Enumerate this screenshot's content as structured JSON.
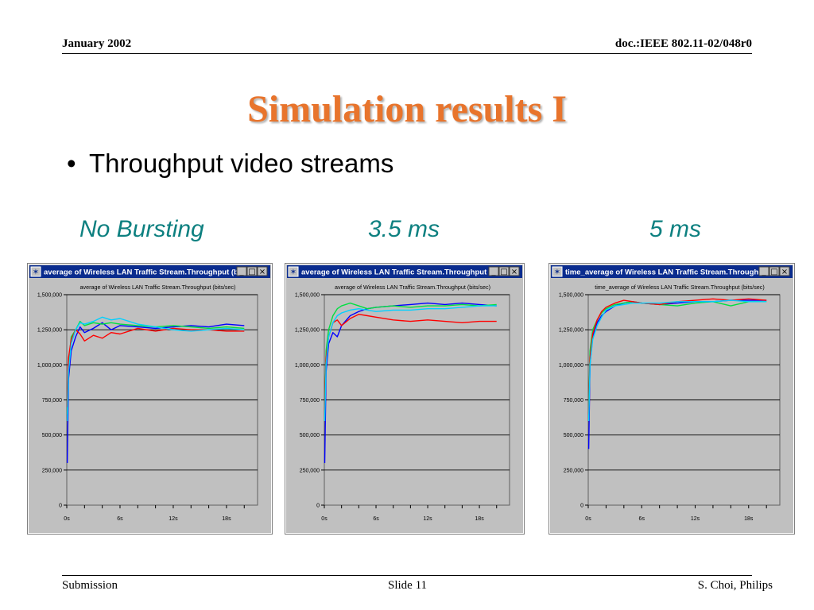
{
  "header": {
    "date": "January 2002",
    "doc_id": "doc.:IEEE 802.11-02/048r0"
  },
  "slide": {
    "title": "Simulation results I",
    "bullet": "Throughput video streams",
    "captions": [
      "No Bursting",
      "3.5 ms",
      "5 ms"
    ]
  },
  "footer": {
    "left": "Submission",
    "center": "Slide 11",
    "right": "S. Choi, Philips"
  },
  "colors": {
    "title": "#e8742c",
    "caption": "#0d8080",
    "window_title_bar": "#0a2c8e",
    "plot_background": "#c0c0c0",
    "series": [
      "#0000ff",
      "#00e040",
      "#ff0000",
      "#00d0ff"
    ]
  },
  "chart_data": [
    {
      "type": "line",
      "window_title": "average of Wireless LAN Traffic Stream.Throughput (bits/s...",
      "title": "average of Wireless LAN Traffic Stream.Throughput (bits/sec)",
      "xlim": [
        0,
        21.5
      ],
      "ylim": [
        0,
        1500000
      ],
      "xticks": [
        0,
        6,
        12,
        18
      ],
      "xtick_labels": [
        "0s",
        "6s",
        "12s",
        "18s"
      ],
      "yticks": [
        0,
        250000,
        500000,
        750000,
        1000000,
        1250000,
        1500000
      ],
      "ytick_labels": [
        "0",
        "250,000",
        "500,000",
        "750,000",
        "1,000,000",
        "1,250,000",
        "1,500,000"
      ],
      "grid": true,
      "series": [
        {
          "color": "blue",
          "x": [
            0.05,
            0.2,
            0.5,
            1,
            1.5,
            2,
            3,
            4,
            5,
            6,
            8,
            10,
            12,
            14,
            16,
            18,
            20
          ],
          "y": [
            300000,
            900000,
            1100000,
            1200000,
            1270000,
            1230000,
            1260000,
            1300000,
            1250000,
            1280000,
            1270000,
            1260000,
            1270000,
            1280000,
            1270000,
            1290000,
            1280000
          ]
        },
        {
          "color": "green",
          "x": [
            0.05,
            0.2,
            0.5,
            1,
            1.5,
            2,
            3,
            4,
            5,
            6,
            8,
            10,
            12,
            14,
            16,
            18,
            20
          ],
          "y": [
            650000,
            1000000,
            1200000,
            1250000,
            1310000,
            1280000,
            1300000,
            1290000,
            1300000,
            1290000,
            1280000,
            1270000,
            1280000,
            1270000,
            1260000,
            1270000,
            1260000
          ]
        },
        {
          "color": "red",
          "x": [
            0.05,
            0.2,
            0.5,
            1,
            1.5,
            2,
            3,
            4,
            5,
            6,
            8,
            10,
            12,
            14,
            16,
            18,
            20
          ],
          "y": [
            700000,
            1050000,
            1180000,
            1250000,
            1220000,
            1170000,
            1210000,
            1190000,
            1230000,
            1220000,
            1260000,
            1240000,
            1260000,
            1250000,
            1250000,
            1240000,
            1240000
          ]
        },
        {
          "color": "cyan",
          "x": [
            0.05,
            0.2,
            0.5,
            1,
            1.5,
            2,
            3,
            4,
            5,
            6,
            8,
            10,
            12,
            14,
            16,
            18,
            20
          ],
          "y": [
            600000,
            950000,
            1150000,
            1250000,
            1300000,
            1290000,
            1310000,
            1340000,
            1320000,
            1330000,
            1290000,
            1270000,
            1250000,
            1240000,
            1250000,
            1260000,
            1250000
          ]
        }
      ]
    },
    {
      "type": "line",
      "window_title": "average of Wireless LAN Traffic Stream.Throughput (bits/s...",
      "title": "average of Wireless LAN Traffic Stream.Throughput (bits/sec)",
      "xlim": [
        0,
        21.5
      ],
      "ylim": [
        0,
        1500000
      ],
      "xticks": [
        0,
        6,
        12,
        18
      ],
      "xtick_labels": [
        "0s",
        "6s",
        "12s",
        "18s"
      ],
      "yticks": [
        0,
        250000,
        500000,
        750000,
        1000000,
        1250000,
        1500000
      ],
      "ytick_labels": [
        "0",
        "250,000",
        "500,000",
        "750,000",
        "1,000,000",
        "1,250,000",
        "1,500,000"
      ],
      "grid": true,
      "series": [
        {
          "color": "blue",
          "x": [
            0.05,
            0.2,
            0.5,
            1,
            1.5,
            2,
            3,
            4,
            5,
            6,
            8,
            10,
            12,
            14,
            16,
            18,
            20
          ],
          "y": [
            300000,
            950000,
            1150000,
            1230000,
            1200000,
            1280000,
            1350000,
            1380000,
            1400000,
            1410000,
            1420000,
            1430000,
            1440000,
            1430000,
            1440000,
            1430000,
            1420000
          ]
        },
        {
          "color": "green",
          "x": [
            0.05,
            0.2,
            0.5,
            1,
            1.5,
            2,
            3,
            4,
            5,
            6,
            8,
            10,
            12,
            14,
            16,
            18,
            20
          ],
          "y": [
            700000,
            1100000,
            1250000,
            1350000,
            1400000,
            1420000,
            1440000,
            1420000,
            1400000,
            1410000,
            1420000,
            1410000,
            1420000,
            1420000,
            1430000,
            1420000,
            1430000
          ]
        },
        {
          "color": "red",
          "x": [
            0.05,
            0.2,
            0.5,
            1,
            1.5,
            2,
            3,
            4,
            5,
            6,
            8,
            10,
            12,
            14,
            16,
            18,
            20
          ],
          "y": [
            680000,
            1050000,
            1200000,
            1300000,
            1320000,
            1280000,
            1330000,
            1360000,
            1350000,
            1340000,
            1320000,
            1310000,
            1320000,
            1310000,
            1300000,
            1310000,
            1310000
          ]
        },
        {
          "color": "cyan",
          "x": [
            0.05,
            0.2,
            0.5,
            1,
            1.5,
            2,
            3,
            4,
            5,
            6,
            8,
            10,
            12,
            14,
            16,
            18,
            20
          ],
          "y": [
            600000,
            1000000,
            1200000,
            1300000,
            1350000,
            1370000,
            1390000,
            1400000,
            1390000,
            1380000,
            1390000,
            1390000,
            1400000,
            1400000,
            1410000,
            1420000,
            1420000
          ]
        }
      ]
    },
    {
      "type": "line",
      "window_title": "time_average of Wireless LAN Traffic Stream.Throughput (...",
      "title": "time_average of Wireless LAN Traffic Stream.Throughput (bits/sec)",
      "xlim": [
        0,
        21.5
      ],
      "ylim": [
        0,
        1500000
      ],
      "xticks": [
        0,
        6,
        12,
        18
      ],
      "xtick_labels": [
        "0s",
        "6s",
        "12s",
        "18s"
      ],
      "yticks": [
        0,
        250000,
        500000,
        750000,
        1000000,
        1250000,
        1500000
      ],
      "ytick_labels": [
        "0",
        "250,000",
        "500,000",
        "750,000",
        "1,000,000",
        "1,250,000",
        "1,500,000"
      ],
      "grid": true,
      "series": [
        {
          "color": "blue",
          "x": [
            0.05,
            0.2,
            0.5,
            1,
            1.5,
            2,
            3,
            4,
            5,
            6,
            8,
            10,
            12,
            14,
            16,
            18,
            20
          ],
          "y": [
            400000,
            1000000,
            1200000,
            1300000,
            1350000,
            1380000,
            1420000,
            1440000,
            1450000,
            1440000,
            1430000,
            1440000,
            1450000,
            1450000,
            1460000,
            1460000,
            1460000
          ]
        },
        {
          "color": "green",
          "x": [
            0.05,
            0.2,
            0.5,
            1,
            1.5,
            2,
            3,
            4,
            5,
            6,
            8,
            10,
            12,
            14,
            16,
            18,
            20
          ],
          "y": [
            700000,
            1100000,
            1250000,
            1320000,
            1370000,
            1400000,
            1430000,
            1440000,
            1450000,
            1440000,
            1430000,
            1420000,
            1440000,
            1450000,
            1420000,
            1450000,
            1450000
          ]
        },
        {
          "color": "red",
          "x": [
            0.05,
            0.2,
            0.5,
            1,
            1.5,
            2,
            3,
            4,
            5,
            6,
            8,
            10,
            12,
            14,
            16,
            18,
            20
          ],
          "y": [
            650000,
            1050000,
            1220000,
            1320000,
            1380000,
            1410000,
            1440000,
            1460000,
            1450000,
            1440000,
            1430000,
            1450000,
            1460000,
            1470000,
            1460000,
            1470000,
            1460000
          ]
        },
        {
          "color": "cyan",
          "x": [
            0.05,
            0.2,
            0.5,
            1,
            1.5,
            2,
            3,
            4,
            5,
            6,
            8,
            10,
            12,
            14,
            16,
            18,
            20
          ],
          "y": [
            600000,
            1000000,
            1180000,
            1280000,
            1340000,
            1390000,
            1420000,
            1430000,
            1440000,
            1440000,
            1440000,
            1450000,
            1450000,
            1450000,
            1460000,
            1450000,
            1450000
          ]
        }
      ]
    }
  ]
}
